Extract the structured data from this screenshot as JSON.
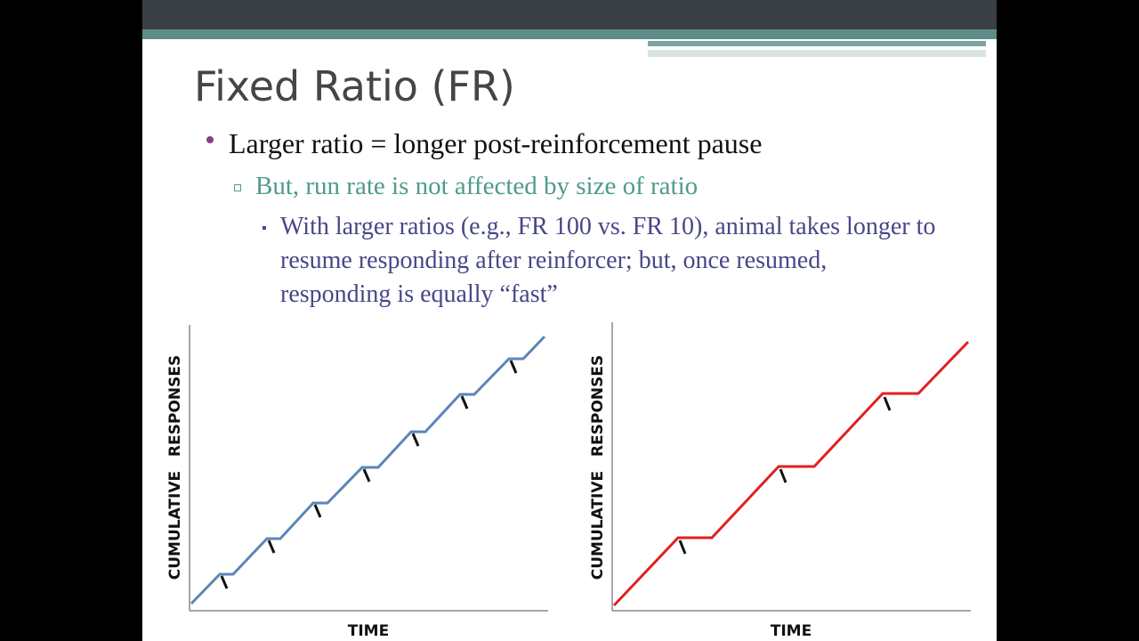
{
  "slide": {
    "title": "Fixed Ratio (FR)",
    "bullet": "Larger ratio = longer post-reinforcement pause",
    "sub_bullet": "But, run rate is not affected by size of ratio",
    "detail": "With larger ratios (e.g., FR 100 vs. FR 10), animal takes longer to resume responding after reinforcer; but, once resumed, responding is equally “fast”",
    "charts": [
      {
        "y_label": "CUMULATIVE RESPONSES",
        "x_label": "TIME"
      },
      {
        "y_label": "CUMULATIVE RESPONSES",
        "x_label": "TIME"
      }
    ]
  }
}
